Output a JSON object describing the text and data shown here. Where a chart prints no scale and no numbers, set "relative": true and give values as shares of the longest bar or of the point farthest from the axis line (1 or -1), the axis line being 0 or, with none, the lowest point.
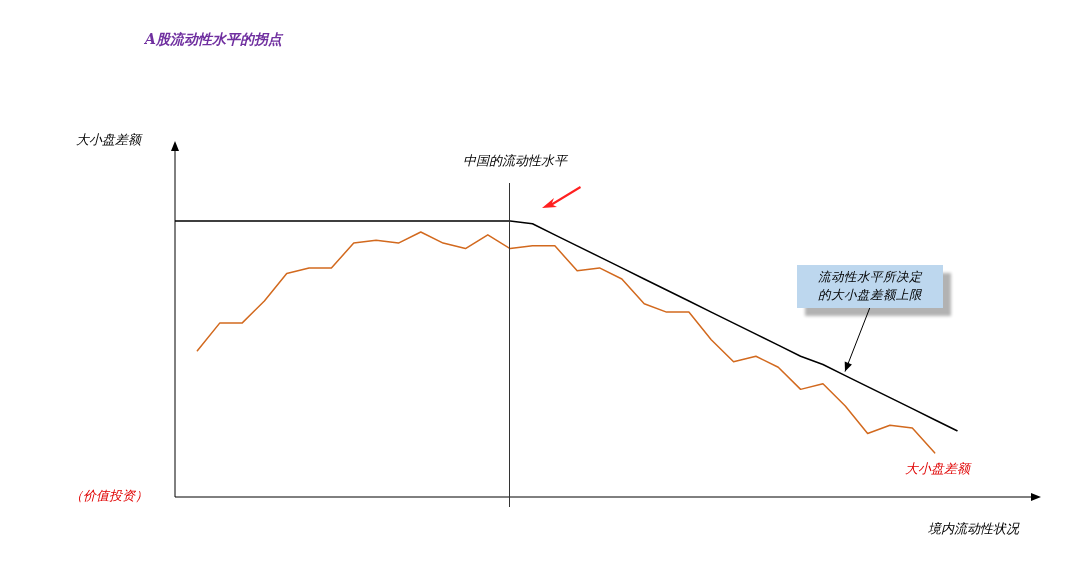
{
  "chart_data": {
    "type": "line",
    "relative": true,
    "title": "A股流动性水平的拐点",
    "xlabel": "境内流动性状况",
    "categories": [
      null,
      null,
      null,
      null,
      null,
      null,
      null,
      null,
      null,
      null,
      null,
      null,
      null,
      null,
      null,
      null,
      null,
      null,
      null,
      null,
      null,
      null,
      null,
      null,
      null,
      null,
      null,
      null,
      null,
      null,
      null,
      null,
      null,
      null,
      null,
      null
    ],
    "series": [
      {
        "color": "#000000",
        "values": [
          1,
          1,
          1,
          1,
          1,
          1,
          1,
          1,
          1,
          1,
          1,
          1,
          1,
          1,
          1,
          1,
          0.99,
          0.95,
          0.91,
          0.87,
          0.83,
          0.79,
          0.75,
          0.71,
          0.67,
          0.63,
          0.59,
          0.55,
          0.51,
          0.48,
          0.44,
          0.4,
          0.36,
          0.32,
          0.28,
          0.24
        ]
      },
      {
        "color": "#d2691e",
        "values": [
          null,
          0.53,
          0.63,
          0.63,
          0.71,
          0.81,
          0.83,
          0.83,
          0.92,
          0.93,
          0.92,
          0.96,
          0.92,
          0.9,
          0.95,
          0.9,
          0.91,
          0.91,
          0.82,
          0.83,
          0.79,
          0.7,
          0.67,
          0.67,
          0.57,
          0.49,
          0.51,
          0.47,
          0.39,
          0.41,
          0.33,
          0.23,
          0.26,
          0.25,
          0.16,
          null
        ]
      }
    ],
    "annotations": [
      "流动性水平所决定的大小盘差额上限",
      "（价值投资）",
      "大小盘差额",
      "中国的流动性水平",
      "大小盘差额"
    ],
    "grid": false,
    "legend": false,
    "marker": "none",
    "line_style": "solid"
  }
}
